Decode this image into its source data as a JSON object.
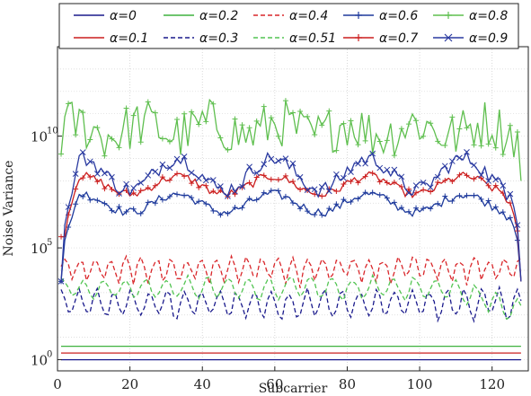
{
  "chart_data": {
    "type": "line",
    "xlabel": "Subcarrier",
    "ylabel": "Noise Variance",
    "xlim": [
      0,
      130
    ],
    "ylim_log10": [
      -0.5,
      14
    ],
    "yscale": "log",
    "grid": true,
    "x_ticks": [
      "0",
      "20",
      "40",
      "60",
      "80",
      "100",
      "120"
    ],
    "y_ticks": [
      {
        "base": "10",
        "exp": "0",
        "log10": 0
      },
      {
        "base": "10",
        "exp": "5",
        "log10": 5
      },
      {
        "base": "10",
        "exp": "10",
        "log10": 10
      }
    ],
    "legend_position": "top",
    "series": [
      {
        "name": "α=0",
        "color": "#1a1a8c",
        "dash": "solid",
        "marker": "none",
        "level_log10": 0.0
      },
      {
        "name": "α=0.1",
        "color": "#cc1f1f",
        "dash": "solid",
        "marker": "none",
        "level_log10": 0.3
      },
      {
        "name": "α=0.2",
        "color": "#3fb23f",
        "dash": "solid",
        "marker": "none",
        "level_log10": 0.6
      },
      {
        "name": "α=0.3",
        "color": "#1a1a8c",
        "dash": "dashed",
        "marker": "none",
        "level_log10": 2.5
      },
      {
        "name": "α=0.4",
        "color": "#d9262a",
        "dash": "dashed",
        "marker": "none",
        "level_log10": 3.7
      },
      {
        "name": "α=0.51",
        "color": "#52c452",
        "dash": "dashed",
        "marker": "none",
        "level_log10": 3.2
      },
      {
        "name": "α=0.6",
        "color": "#1e3a9c",
        "dash": "solid",
        "marker": "plus",
        "level_log10": 7.0
      },
      {
        "name": "α=0.7",
        "color": "#cc1f1f",
        "dash": "solid",
        "marker": "plus",
        "level_log10": 7.8
      },
      {
        "name": "α=0.8",
        "color": "#5fbf4f",
        "dash": "solid",
        "marker": "plus",
        "level_log10": 10.2
      },
      {
        "name": "α=0.9",
        "color": "#2a3aa0",
        "dash": "solid",
        "marker": "x",
        "level_log10": 8.3
      }
    ]
  }
}
